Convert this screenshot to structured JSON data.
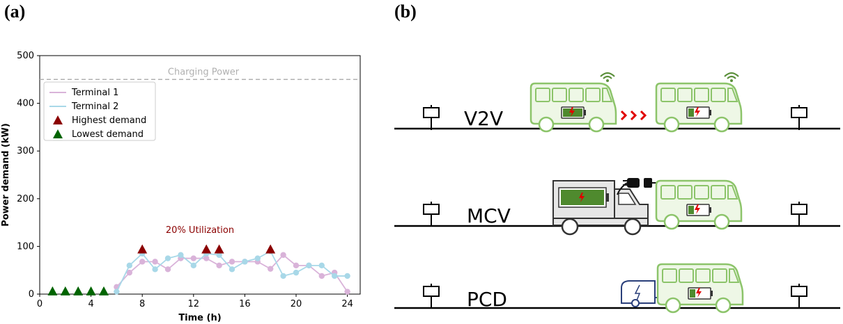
{
  "panel_a": {
    "label": "(a)"
  },
  "panel_b": {
    "label": "(b)",
    "rows": [
      {
        "id": "v2v",
        "label": "V2V"
      },
      {
        "id": "mcv",
        "label": "MCV"
      },
      {
        "id": "pcd",
        "label": "PCD"
      }
    ]
  },
  "colors": {
    "terminal1": "#d9b3d9",
    "terminal2": "#a8d8e8",
    "highest": "#8b0000",
    "lowest": "#006400",
    "bus": "#8cc46a",
    "battery_fill": "#4f8a2e",
    "bolt": "#e00000"
  },
  "chart_data": {
    "type": "line",
    "xlabel": "Time (h)",
    "ylabel": "Power demand (kW)",
    "xlim": [
      0,
      25
    ],
    "ylim": [
      0,
      500
    ],
    "xticks": [
      0,
      4,
      8,
      12,
      16,
      20,
      24
    ],
    "yticks": [
      0,
      100,
      200,
      300,
      400,
      500
    ],
    "charging_power": {
      "value": 450,
      "label": "Charging Power"
    },
    "annotation": {
      "text": "20% Utilization",
      "x": 12.5,
      "y": 128
    },
    "legend": {
      "placement": "top-left",
      "entries": [
        "Terminal 1",
        "Terminal 2",
        "Highest demand",
        "Lowest demand"
      ]
    },
    "series": [
      {
        "name": "Terminal 1",
        "x": [
          6,
          7,
          8,
          9,
          10,
          11,
          12,
          13,
          14,
          15,
          16,
          17,
          18,
          19,
          20,
          21,
          22,
          23,
          24
        ],
        "values": [
          15,
          45,
          68,
          68,
          52,
          75,
          75,
          75,
          60,
          68,
          68,
          68,
          53,
          82,
          60,
          60,
          38,
          45,
          5
        ]
      },
      {
        "name": "Terminal 2",
        "x": [
          6,
          7,
          8,
          9,
          10,
          11,
          12,
          13,
          14,
          15,
          16,
          17,
          18,
          19,
          20,
          21,
          22,
          23,
          24
        ],
        "values": [
          5,
          60,
          85,
          52,
          75,
          82,
          60,
          85,
          82,
          52,
          68,
          75,
          90,
          38,
          45,
          60,
          60,
          38,
          38
        ]
      }
    ],
    "highest_demand": {
      "name": "Highest demand",
      "x": [
        8,
        13,
        14,
        18
      ],
      "values": [
        94,
        94,
        94,
        94
      ]
    },
    "lowest_demand": {
      "name": "Lowest demand",
      "x": [
        1,
        2,
        3,
        4,
        5
      ],
      "values": [
        6,
        6,
        6,
        6,
        6
      ]
    }
  }
}
